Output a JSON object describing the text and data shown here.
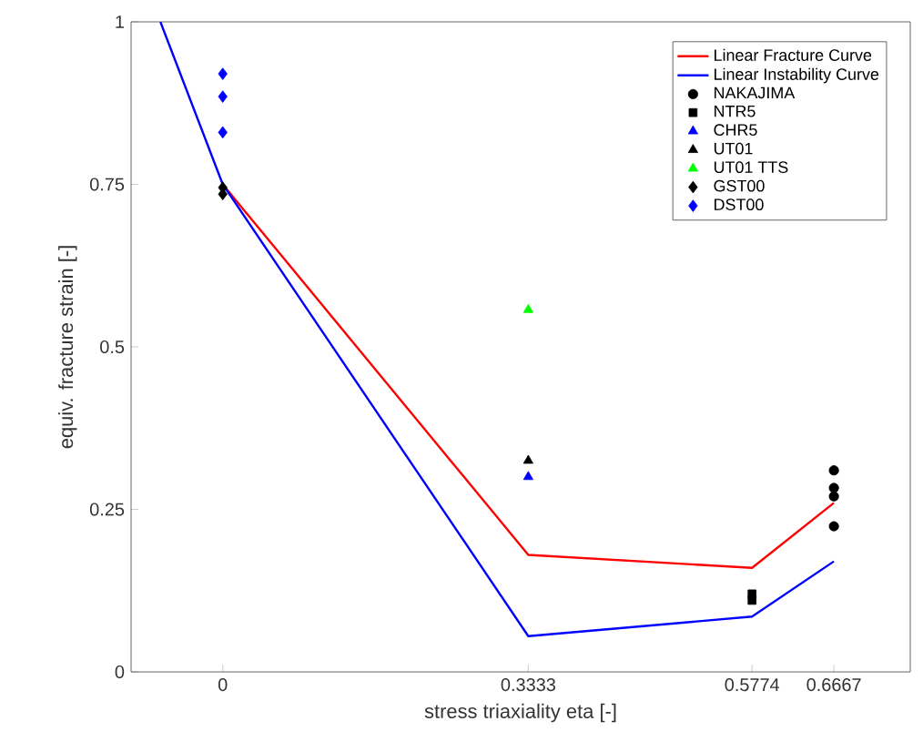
{
  "chart_data": {
    "type": "scatter",
    "xlabel": "stress triaxiality eta [-]",
    "ylabel": "equiv. fracture strain [-]",
    "xlim": [
      -0.1,
      0.75
    ],
    "ylim": [
      0,
      1
    ],
    "xticks": [
      0,
      0.3333,
      0.5774,
      0.6667
    ],
    "yticks": [
      0,
      0.25,
      0.5,
      0.75,
      1
    ],
    "legend": "top right",
    "grid": false,
    "series": [
      {
        "name": "Linear Fracture Curve",
        "type": "line",
        "color": "#ff0000",
        "marker": "none",
        "x": [
          0,
          0.3333,
          0.5774,
          0.6667
        ],
        "values": [
          0.75,
          0.18,
          0.16,
          0.26
        ]
      },
      {
        "name": "Linear Instability Curve",
        "type": "line",
        "color": "#0000ff",
        "marker": "none",
        "x": [
          -0.068,
          0,
          0.3333,
          0.5774,
          0.6667
        ],
        "values": [
          1,
          0.75,
          0.055,
          0.085,
          0.17
        ]
      },
      {
        "name": "NAKAJIMA",
        "color": "#000000",
        "marker": "circle",
        "x": [
          0.6667,
          0.6667,
          0.6667,
          0.6667
        ],
        "values": [
          0.31,
          0.283,
          0.27,
          0.224
        ]
      },
      {
        "name": "NTR5",
        "color": "#000000",
        "marker": "square",
        "x": [
          0.5774,
          0.5774
        ],
        "values": [
          0.12,
          0.11
        ]
      },
      {
        "name": "CHR5",
        "color": "#0000ff",
        "marker": "triangle",
        "x": [
          0.3333
        ],
        "values": [
          0.3
        ]
      },
      {
        "name": "UT01",
        "color": "#000000",
        "marker": "triangle",
        "x": [
          0.3333
        ],
        "values": [
          0.325
        ]
      },
      {
        "name": "UT01 TTS",
        "color": "#00ff00",
        "marker": "triangle",
        "x": [
          0.3333
        ],
        "values": [
          0.557
        ]
      },
      {
        "name": "GST00",
        "color": "#000000",
        "marker": "diamond",
        "x": [
          0,
          0
        ],
        "values": [
          0.745,
          0.735
        ]
      },
      {
        "name": "DST00",
        "color": "#0000ff",
        "marker": "diamond",
        "x": [
          0,
          0,
          0
        ],
        "values": [
          0.92,
          0.885,
          0.83
        ]
      }
    ]
  }
}
